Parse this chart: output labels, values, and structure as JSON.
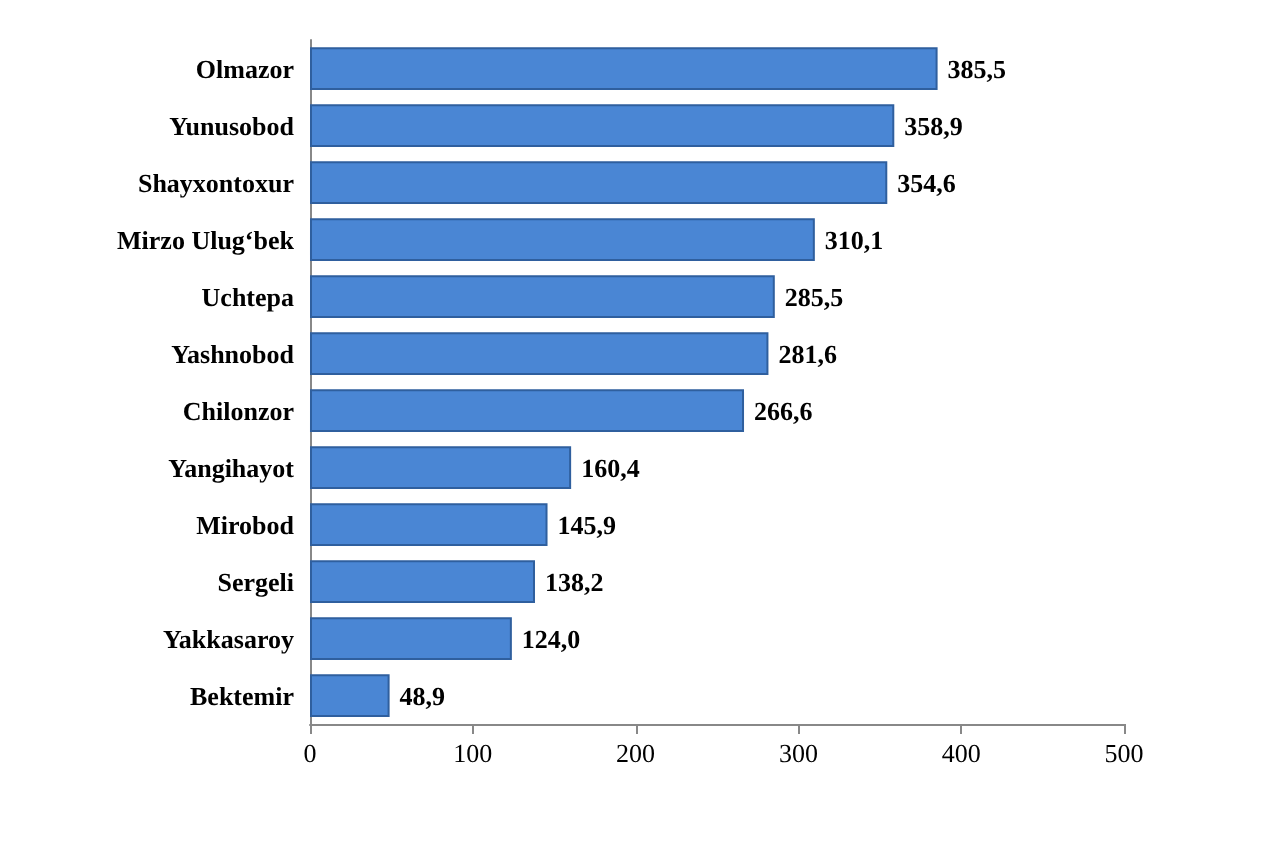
{
  "chart_data": {
    "type": "bar",
    "orientation": "horizontal",
    "categories": [
      "Olmazor",
      "Yunusobod",
      "Shayxontoxur",
      "Mirzo Ulug‘bek",
      "Uchtepa",
      "Yashnobod",
      "Chilonzor",
      "Yangihayot",
      "Mirobod",
      "Sergeli",
      "Yakkasaroy",
      "Bektemir"
    ],
    "values": [
      385.5,
      358.9,
      354.6,
      310.1,
      285.5,
      281.6,
      266.6,
      160.4,
      145.9,
      138.2,
      124.0,
      48.9
    ],
    "value_labels": [
      "385,5",
      "358,9",
      "354,6",
      "310,1",
      "285,5",
      "281,6",
      "266,6",
      "160,4",
      "145,9",
      "138,2",
      "124,0",
      "48,9"
    ],
    "color": "#4a86d4",
    "xlim": [
      0,
      500
    ],
    "xticks": [
      0,
      100,
      200,
      300,
      400,
      500
    ]
  }
}
